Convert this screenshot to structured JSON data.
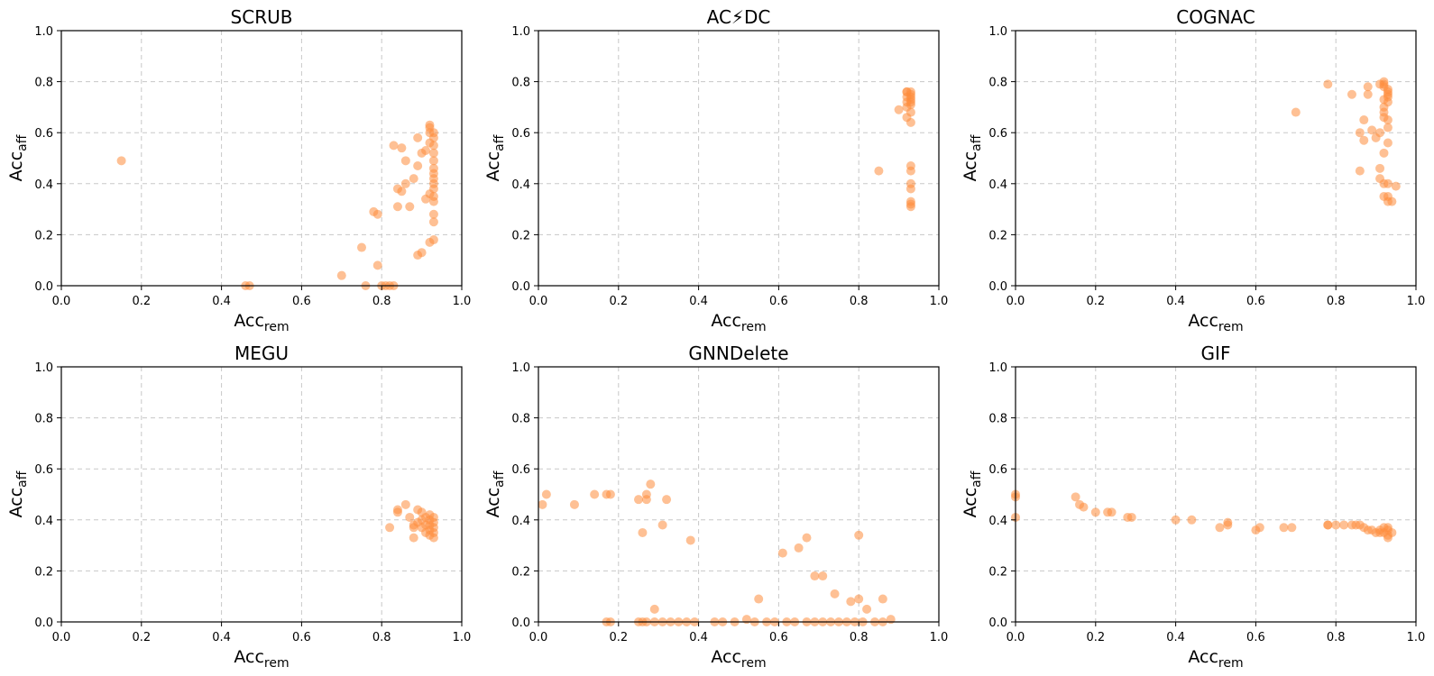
{
  "chart_data": [
    {
      "type": "scatter",
      "title": "SCRUB",
      "xlabel": "Acc",
      "xlabel_sub": "rem",
      "ylabel": "Acc",
      "ylabel_sub": "aff",
      "xlim": [
        0,
        1
      ],
      "ylim": [
        0,
        1
      ],
      "xticks": [
        "0.0",
        "0.2",
        "0.4",
        "0.6",
        "0.8",
        "1.0"
      ],
      "yticks": [
        "0.0",
        "0.2",
        "0.4",
        "0.6",
        "0.8",
        "1.0"
      ],
      "grid": true,
      "color": "#fd8d3c",
      "points": [
        [
          0.15,
          0.49
        ],
        [
          0.47,
          0.0
        ],
        [
          0.46,
          0.0
        ],
        [
          0.7,
          0.04
        ],
        [
          0.75,
          0.15
        ],
        [
          0.76,
          0.0
        ],
        [
          0.78,
          0.29
        ],
        [
          0.79,
          0.28
        ],
        [
          0.79,
          0.08
        ],
        [
          0.8,
          0.0
        ],
        [
          0.81,
          0.0
        ],
        [
          0.82,
          0.0
        ],
        [
          0.83,
          0.0
        ],
        [
          0.83,
          0.55
        ],
        [
          0.84,
          0.31
        ],
        [
          0.84,
          0.38
        ],
        [
          0.85,
          0.54
        ],
        [
          0.85,
          0.37
        ],
        [
          0.86,
          0.4
        ],
        [
          0.86,
          0.49
        ],
        [
          0.87,
          0.31
        ],
        [
          0.88,
          0.42
        ],
        [
          0.89,
          0.47
        ],
        [
          0.89,
          0.12
        ],
        [
          0.9,
          0.13
        ],
        [
          0.9,
          0.52
        ],
        [
          0.89,
          0.58
        ],
        [
          0.91,
          0.34
        ],
        [
          0.91,
          0.53
        ],
        [
          0.92,
          0.36
        ],
        [
          0.92,
          0.63
        ],
        [
          0.92,
          0.6
        ],
        [
          0.92,
          0.56
        ],
        [
          0.93,
          0.58
        ],
        [
          0.93,
          0.55
        ],
        [
          0.93,
          0.52
        ],
        [
          0.93,
          0.49
        ],
        [
          0.93,
          0.46
        ],
        [
          0.93,
          0.44
        ],
        [
          0.93,
          0.42
        ],
        [
          0.93,
          0.4
        ],
        [
          0.93,
          0.38
        ],
        [
          0.93,
          0.35
        ],
        [
          0.93,
          0.33
        ],
        [
          0.93,
          0.28
        ],
        [
          0.93,
          0.25
        ],
        [
          0.93,
          0.18
        ],
        [
          0.92,
          0.17
        ],
        [
          0.92,
          0.62
        ],
        [
          0.93,
          0.6
        ]
      ]
    },
    {
      "type": "scatter",
      "title": "AC⚡DC",
      "xlabel": "Acc",
      "xlabel_sub": "rem",
      "ylabel": "Acc",
      "ylabel_sub": "aff",
      "xlim": [
        0,
        1
      ],
      "ylim": [
        0,
        1
      ],
      "xticks": [
        "0.0",
        "0.2",
        "0.4",
        "0.6",
        "0.8",
        "1.0"
      ],
      "yticks": [
        "0.0",
        "0.2",
        "0.4",
        "0.6",
        "0.8",
        "1.0"
      ],
      "grid": true,
      "color": "#fd8d3c",
      "points": [
        [
          0.85,
          0.45
        ],
        [
          0.9,
          0.69
        ],
        [
          0.92,
          0.76
        ],
        [
          0.92,
          0.74
        ],
        [
          0.93,
          0.75
        ],
        [
          0.93,
          0.73
        ],
        [
          0.93,
          0.72
        ],
        [
          0.93,
          0.71
        ],
        [
          0.92,
          0.7
        ],
        [
          0.93,
          0.68
        ],
        [
          0.92,
          0.66
        ],
        [
          0.93,
          0.64
        ],
        [
          0.93,
          0.47
        ],
        [
          0.93,
          0.45
        ],
        [
          0.93,
          0.4
        ],
        [
          0.93,
          0.38
        ],
        [
          0.93,
          0.33
        ],
        [
          0.93,
          0.32
        ],
        [
          0.93,
          0.31
        ],
        [
          0.92,
          0.76
        ],
        [
          0.93,
          0.76
        ],
        [
          0.93,
          0.74
        ],
        [
          0.92,
          0.72
        ]
      ]
    },
    {
      "type": "scatter",
      "title": "COGNAC",
      "xlabel": "Acc",
      "xlabel_sub": "rem",
      "ylabel": "Acc",
      "ylabel_sub": "aff",
      "xlim": [
        0,
        1
      ],
      "ylim": [
        0,
        1
      ],
      "xticks": [
        "0.0",
        "0.2",
        "0.4",
        "0.6",
        "0.8",
        "1.0"
      ],
      "yticks": [
        "0.0",
        "0.2",
        "0.4",
        "0.6",
        "0.8",
        "1.0"
      ],
      "grid": true,
      "color": "#fd8d3c",
      "points": [
        [
          0.7,
          0.68
        ],
        [
          0.78,
          0.79
        ],
        [
          0.84,
          0.75
        ],
        [
          0.86,
          0.45
        ],
        [
          0.86,
          0.6
        ],
        [
          0.87,
          0.57
        ],
        [
          0.87,
          0.65
        ],
        [
          0.88,
          0.78
        ],
        [
          0.88,
          0.75
        ],
        [
          0.89,
          0.61
        ],
        [
          0.9,
          0.58
        ],
        [
          0.91,
          0.79
        ],
        [
          0.91,
          0.6
        ],
        [
          0.91,
          0.46
        ],
        [
          0.91,
          0.42
        ],
        [
          0.92,
          0.4
        ],
        [
          0.92,
          0.35
        ],
        [
          0.92,
          0.8
        ],
        [
          0.92,
          0.79
        ],
        [
          0.92,
          0.78
        ],
        [
          0.93,
          0.77
        ],
        [
          0.93,
          0.76
        ],
        [
          0.93,
          0.75
        ],
        [
          0.93,
          0.74
        ],
        [
          0.92,
          0.73
        ],
        [
          0.93,
          0.72
        ],
        [
          0.92,
          0.7
        ],
        [
          0.92,
          0.68
        ],
        [
          0.93,
          0.65
        ],
        [
          0.93,
          0.62
        ],
        [
          0.93,
          0.56
        ],
        [
          0.92,
          0.52
        ],
        [
          0.93,
          0.4
        ],
        [
          0.93,
          0.35
        ],
        [
          0.93,
          0.33
        ],
        [
          0.94,
          0.33
        ],
        [
          0.95,
          0.39
        ],
        [
          0.92,
          0.66
        ]
      ]
    },
    {
      "type": "scatter",
      "title": "MEGU",
      "xlabel": "Acc",
      "xlabel_sub": "rem",
      "ylabel": "Acc",
      "ylabel_sub": "aff",
      "xlim": [
        0,
        1
      ],
      "ylim": [
        0,
        1
      ],
      "xticks": [
        "0.0",
        "0.2",
        "0.4",
        "0.6",
        "0.8",
        "1.0"
      ],
      "yticks": [
        "0.0",
        "0.2",
        "0.4",
        "0.6",
        "0.8",
        "1.0"
      ],
      "grid": true,
      "color": "#fd8d3c",
      "points": [
        [
          0.82,
          0.37
        ],
        [
          0.84,
          0.44
        ],
        [
          0.84,
          0.43
        ],
        [
          0.86,
          0.46
        ],
        [
          0.87,
          0.41
        ],
        [
          0.88,
          0.38
        ],
        [
          0.88,
          0.33
        ],
        [
          0.88,
          0.37
        ],
        [
          0.89,
          0.44
        ],
        [
          0.89,
          0.39
        ],
        [
          0.9,
          0.43
        ],
        [
          0.9,
          0.37
        ],
        [
          0.91,
          0.41
        ],
        [
          0.91,
          0.35
        ],
        [
          0.92,
          0.42
        ],
        [
          0.92,
          0.4
        ],
        [
          0.92,
          0.38
        ],
        [
          0.92,
          0.36
        ],
        [
          0.92,
          0.34
        ],
        [
          0.93,
          0.41
        ],
        [
          0.93,
          0.39
        ],
        [
          0.93,
          0.37
        ],
        [
          0.93,
          0.35
        ],
        [
          0.93,
          0.33
        ],
        [
          0.9,
          0.4
        ],
        [
          0.91,
          0.38
        ]
      ]
    },
    {
      "type": "scatter",
      "title": "GNNDelete",
      "xlabel": "Acc",
      "xlabel_sub": "rem",
      "ylabel": "Acc",
      "ylabel_sub": "aff",
      "xlim": [
        0,
        1
      ],
      "ylim": [
        0,
        1
      ],
      "xticks": [
        "0.0",
        "0.2",
        "0.4",
        "0.6",
        "0.8",
        "1.0"
      ],
      "yticks": [
        "0.0",
        "0.2",
        "0.4",
        "0.6",
        "0.8",
        "1.0"
      ],
      "grid": true,
      "color": "#fd8d3c",
      "points": [
        [
          0.01,
          0.46
        ],
        [
          0.02,
          0.5
        ],
        [
          0.09,
          0.46
        ],
        [
          0.14,
          0.5
        ],
        [
          0.17,
          0.5
        ],
        [
          0.18,
          0.5
        ],
        [
          0.25,
          0.48
        ],
        [
          0.26,
          0.35
        ],
        [
          0.27,
          0.48
        ],
        [
          0.27,
          0.5
        ],
        [
          0.28,
          0.54
        ],
        [
          0.29,
          0.05
        ],
        [
          0.31,
          0.38
        ],
        [
          0.32,
          0.48
        ],
        [
          0.38,
          0.32
        ],
        [
          0.55,
          0.09
        ],
        [
          0.61,
          0.27
        ],
        [
          0.65,
          0.29
        ],
        [
          0.67,
          0.33
        ],
        [
          0.69,
          0.18
        ],
        [
          0.71,
          0.18
        ],
        [
          0.74,
          0.11
        ],
        [
          0.78,
          0.08
        ],
        [
          0.8,
          0.09
        ],
        [
          0.8,
          0.34
        ],
        [
          0.82,
          0.05
        ],
        [
          0.86,
          0.09
        ],
        [
          0.88,
          0.01
        ],
        [
          0.17,
          0.0
        ],
        [
          0.18,
          0.0
        ],
        [
          0.25,
          0.0
        ],
        [
          0.26,
          0.0
        ],
        [
          0.27,
          0.0
        ],
        [
          0.29,
          0.0
        ],
        [
          0.31,
          0.0
        ],
        [
          0.33,
          0.0
        ],
        [
          0.35,
          0.0
        ],
        [
          0.37,
          0.0
        ],
        [
          0.39,
          0.0
        ],
        [
          0.44,
          0.0
        ],
        [
          0.46,
          0.0
        ],
        [
          0.49,
          0.0
        ],
        [
          0.52,
          0.01
        ],
        [
          0.54,
          0.0
        ],
        [
          0.57,
          0.0
        ],
        [
          0.59,
          0.0
        ],
        [
          0.62,
          0.0
        ],
        [
          0.64,
          0.0
        ],
        [
          0.67,
          0.0
        ],
        [
          0.69,
          0.0
        ],
        [
          0.71,
          0.0
        ],
        [
          0.73,
          0.0
        ],
        [
          0.75,
          0.0
        ],
        [
          0.77,
          0.0
        ],
        [
          0.79,
          0.0
        ],
        [
          0.81,
          0.0
        ],
        [
          0.84,
          0.0
        ],
        [
          0.86,
          0.0
        ]
      ]
    },
    {
      "type": "scatter",
      "title": "GIF",
      "xlabel": "Acc",
      "xlabel_sub": "rem",
      "ylabel": "Acc",
      "ylabel_sub": "aff",
      "xlim": [
        0,
        1
      ],
      "ylim": [
        0,
        1
      ],
      "xticks": [
        "0.0",
        "0.2",
        "0.4",
        "0.6",
        "0.8",
        "1.0"
      ],
      "yticks": [
        "0.0",
        "0.2",
        "0.4",
        "0.6",
        "0.8",
        "1.0"
      ],
      "grid": true,
      "color": "#fd8d3c",
      "points": [
        [
          0.0,
          0.5
        ],
        [
          0.0,
          0.49
        ],
        [
          0.0,
          0.41
        ],
        [
          0.15,
          0.49
        ],
        [
          0.16,
          0.46
        ],
        [
          0.17,
          0.45
        ],
        [
          0.2,
          0.43
        ],
        [
          0.23,
          0.43
        ],
        [
          0.24,
          0.43
        ],
        [
          0.28,
          0.41
        ],
        [
          0.29,
          0.41
        ],
        [
          0.4,
          0.4
        ],
        [
          0.44,
          0.4
        ],
        [
          0.51,
          0.37
        ],
        [
          0.53,
          0.39
        ],
        [
          0.53,
          0.38
        ],
        [
          0.6,
          0.36
        ],
        [
          0.61,
          0.37
        ],
        [
          0.67,
          0.37
        ],
        [
          0.69,
          0.37
        ],
        [
          0.78,
          0.38
        ],
        [
          0.78,
          0.38
        ],
        [
          0.8,
          0.38
        ],
        [
          0.82,
          0.38
        ],
        [
          0.84,
          0.38
        ],
        [
          0.85,
          0.38
        ],
        [
          0.86,
          0.38
        ],
        [
          0.87,
          0.37
        ],
        [
          0.88,
          0.36
        ],
        [
          0.89,
          0.36
        ],
        [
          0.9,
          0.35
        ],
        [
          0.91,
          0.36
        ],
        [
          0.91,
          0.35
        ],
        [
          0.92,
          0.37
        ],
        [
          0.92,
          0.35
        ],
        [
          0.93,
          0.36
        ],
        [
          0.93,
          0.34
        ],
        [
          0.93,
          0.33
        ],
        [
          0.94,
          0.35
        ],
        [
          0.93,
          0.37
        ]
      ]
    }
  ]
}
